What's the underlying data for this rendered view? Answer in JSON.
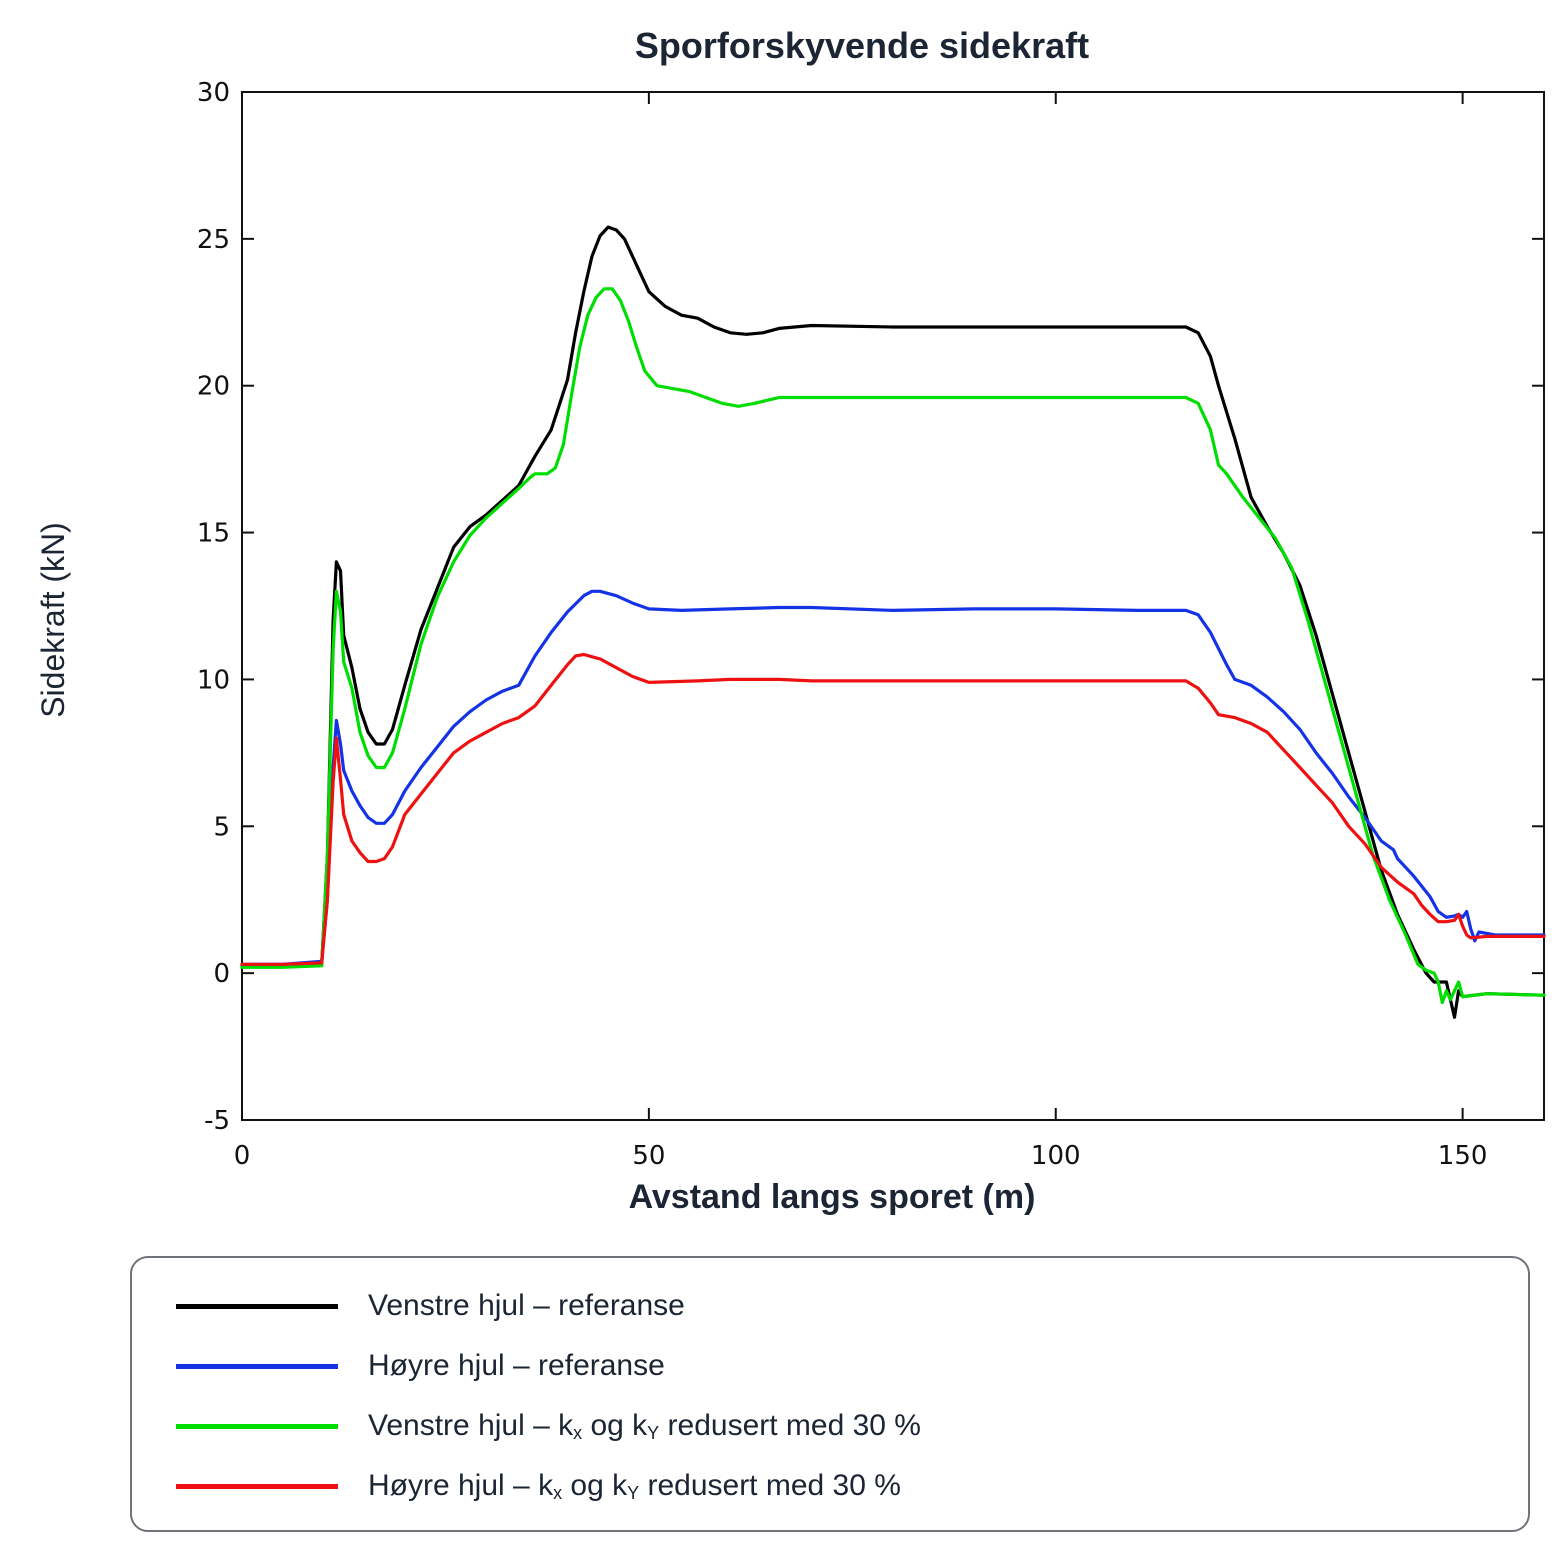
{
  "chart_data": {
    "type": "line",
    "title": "Sporforskyvende sidekraft",
    "xlabel": "Avstand langs sporet (m)",
    "ylabel": "Sidekraft (kN)",
    "xlim": [
      0,
      160
    ],
    "ylim": [
      -5,
      30
    ],
    "xticks": [
      0,
      50,
      100,
      150
    ],
    "yticks": [
      -5,
      0,
      5,
      10,
      15,
      20,
      25,
      30
    ],
    "grid": false,
    "legend_position": "bottom",
    "series": [
      {
        "name": "Venstre hjul – referanse",
        "color": "#000000",
        "points": [
          [
            0,
            0.25
          ],
          [
            5,
            0.25
          ],
          [
            9.8,
            0.3
          ],
          [
            10.5,
            4
          ],
          [
            11.2,
            12
          ],
          [
            11.6,
            14
          ],
          [
            12.1,
            13.7
          ],
          [
            12.5,
            11.5
          ],
          [
            13.5,
            10.4
          ],
          [
            14.5,
            9
          ],
          [
            15.5,
            8.2
          ],
          [
            16.5,
            7.8
          ],
          [
            17.5,
            7.8
          ],
          [
            18.5,
            8.3
          ],
          [
            20,
            9.8
          ],
          [
            22,
            11.7
          ],
          [
            24,
            13.1
          ],
          [
            26,
            14.5
          ],
          [
            28,
            15.2
          ],
          [
            30,
            15.6
          ],
          [
            32,
            16.1
          ],
          [
            34,
            16.6
          ],
          [
            36,
            17.6
          ],
          [
            38,
            18.5
          ],
          [
            40,
            20.2
          ],
          [
            41,
            21.8
          ],
          [
            42,
            23.2
          ],
          [
            43,
            24.4
          ],
          [
            44,
            25.1
          ],
          [
            45,
            25.4
          ],
          [
            46,
            25.3
          ],
          [
            47,
            25
          ],
          [
            48,
            24.4
          ],
          [
            49,
            23.8
          ],
          [
            50,
            23.2
          ],
          [
            52,
            22.7
          ],
          [
            54,
            22.4
          ],
          [
            56,
            22.3
          ],
          [
            58,
            22
          ],
          [
            60,
            21.8
          ],
          [
            62,
            21.75
          ],
          [
            64,
            21.8
          ],
          [
            66,
            21.95
          ],
          [
            70,
            22.05
          ],
          [
            80,
            22
          ],
          [
            90,
            22
          ],
          [
            100,
            22
          ],
          [
            110,
            22
          ],
          [
            116,
            22
          ],
          [
            117.5,
            21.8
          ],
          [
            119,
            21
          ],
          [
            120,
            20
          ],
          [
            122,
            18.2
          ],
          [
            124,
            16.2
          ],
          [
            126,
            15.2
          ],
          [
            128,
            14.3
          ],
          [
            130,
            13.2
          ],
          [
            132,
            11.5
          ],
          [
            134,
            9.5
          ],
          [
            136,
            7.5
          ],
          [
            138,
            5.5
          ],
          [
            140,
            3.5
          ],
          [
            142,
            2
          ],
          [
            144,
            0.8
          ],
          [
            145.5,
            0
          ],
          [
            146.5,
            -0.3
          ],
          [
            148,
            -0.3
          ],
          [
            148.5,
            -0.9
          ],
          [
            149,
            -1.5
          ],
          [
            149.5,
            -0.6
          ],
          [
            150,
            -0.8
          ],
          [
            153,
            -0.7
          ],
          [
            160,
            -0.75
          ]
        ]
      },
      {
        "name": "Høyre hjul – referanse",
        "color": "#1433e6",
        "points": [
          [
            0,
            0.3
          ],
          [
            5,
            0.3
          ],
          [
            9.8,
            0.4
          ],
          [
            10.5,
            2.5
          ],
          [
            11.2,
            7
          ],
          [
            11.6,
            8.6
          ],
          [
            12.1,
            7.8
          ],
          [
            12.5,
            6.9
          ],
          [
            13.5,
            6.2
          ],
          [
            14.5,
            5.7
          ],
          [
            15.5,
            5.3
          ],
          [
            16.5,
            5.1
          ],
          [
            17.5,
            5.1
          ],
          [
            18.5,
            5.4
          ],
          [
            20,
            6.2
          ],
          [
            22,
            7
          ],
          [
            24,
            7.7
          ],
          [
            26,
            8.4
          ],
          [
            28,
            8.9
          ],
          [
            30,
            9.3
          ],
          [
            32,
            9.6
          ],
          [
            34,
            9.8
          ],
          [
            36,
            10.8
          ],
          [
            38,
            11.6
          ],
          [
            40,
            12.3
          ],
          [
            42,
            12.85
          ],
          [
            43,
            13
          ],
          [
            44,
            13
          ],
          [
            46,
            12.85
          ],
          [
            48,
            12.6
          ],
          [
            50,
            12.4
          ],
          [
            54,
            12.35
          ],
          [
            60,
            12.4
          ],
          [
            66,
            12.45
          ],
          [
            70,
            12.45
          ],
          [
            80,
            12.35
          ],
          [
            90,
            12.4
          ],
          [
            100,
            12.4
          ],
          [
            110,
            12.35
          ],
          [
            116,
            12.35
          ],
          [
            117.5,
            12.2
          ],
          [
            119,
            11.6
          ],
          [
            121,
            10.5
          ],
          [
            122,
            10
          ],
          [
            124,
            9.8
          ],
          [
            126,
            9.4
          ],
          [
            128,
            8.9
          ],
          [
            130,
            8.3
          ],
          [
            132,
            7.5
          ],
          [
            134,
            6.8
          ],
          [
            136,
            6
          ],
          [
            138,
            5.3
          ],
          [
            140,
            4.5
          ],
          [
            141.5,
            4.2
          ],
          [
            142,
            3.9
          ],
          [
            144,
            3.3
          ],
          [
            146,
            2.6
          ],
          [
            147,
            2.1
          ],
          [
            148,
            1.9
          ],
          [
            149,
            1.95
          ],
          [
            149.5,
            2
          ],
          [
            150,
            1.9
          ],
          [
            150.5,
            2.1
          ],
          [
            151,
            1.5
          ],
          [
            151.5,
            1.1
          ],
          [
            152,
            1.4
          ],
          [
            154,
            1.3
          ],
          [
            160,
            1.3
          ]
        ]
      },
      {
        "name": "Venstre hjul – kₓ og kᵧ redusert med 30 %",
        "color": "#00dd00",
        "points": [
          [
            0,
            0.2
          ],
          [
            5,
            0.2
          ],
          [
            9.8,
            0.25
          ],
          [
            10.5,
            4
          ],
          [
            11.2,
            11
          ],
          [
            11.6,
            13
          ],
          [
            12.1,
            12.3
          ],
          [
            12.5,
            10.6
          ],
          [
            13.5,
            9.7
          ],
          [
            14.5,
            8.2
          ],
          [
            15.5,
            7.4
          ],
          [
            16.5,
            7
          ],
          [
            17.5,
            7
          ],
          [
            18.5,
            7.5
          ],
          [
            20,
            9
          ],
          [
            22,
            11.2
          ],
          [
            24,
            12.8
          ],
          [
            26,
            14
          ],
          [
            28,
            14.9
          ],
          [
            30,
            15.5
          ],
          [
            32,
            16
          ],
          [
            34,
            16.5
          ],
          [
            35.5,
            16.9
          ],
          [
            36,
            17
          ],
          [
            37.5,
            17
          ],
          [
            38.5,
            17.2
          ],
          [
            39.5,
            18
          ],
          [
            40.5,
            19.7
          ],
          [
            41.5,
            21.3
          ],
          [
            42.5,
            22.4
          ],
          [
            43.5,
            23
          ],
          [
            44.5,
            23.3
          ],
          [
            45.5,
            23.3
          ],
          [
            46.5,
            22.9
          ],
          [
            47.5,
            22.2
          ],
          [
            48.5,
            21.3
          ],
          [
            49.5,
            20.5
          ],
          [
            51,
            20
          ],
          [
            53,
            19.9
          ],
          [
            55,
            19.8
          ],
          [
            57,
            19.6
          ],
          [
            59,
            19.4
          ],
          [
            61,
            19.3
          ],
          [
            63,
            19.4
          ],
          [
            66,
            19.6
          ],
          [
            70,
            19.6
          ],
          [
            80,
            19.6
          ],
          [
            90,
            19.6
          ],
          [
            100,
            19.6
          ],
          [
            110,
            19.6
          ],
          [
            116,
            19.6
          ],
          [
            117.5,
            19.4
          ],
          [
            119,
            18.5
          ],
          [
            120,
            17.3
          ],
          [
            121,
            17
          ],
          [
            123,
            16.2
          ],
          [
            125,
            15.5
          ],
          [
            127,
            14.8
          ],
          [
            129,
            13.8
          ],
          [
            131,
            12
          ],
          [
            133,
            10
          ],
          [
            135,
            8
          ],
          [
            137,
            6
          ],
          [
            139,
            4
          ],
          [
            141,
            2.5
          ],
          [
            143,
            1.3
          ],
          [
            144.5,
            0.3
          ],
          [
            145.5,
            0.1
          ],
          [
            146.5,
            0
          ],
          [
            147,
            -0.3
          ],
          [
            147.5,
            -1
          ],
          [
            148,
            -0.6
          ],
          [
            148.5,
            -0.9
          ],
          [
            149,
            -0.6
          ],
          [
            149.5,
            -0.3
          ],
          [
            150,
            -0.8
          ],
          [
            153,
            -0.7
          ],
          [
            160,
            -0.75
          ]
        ]
      },
      {
        "name": "Høyre hjul – kₓ og kᵧ redusert med 30 %",
        "color": "#ee1111",
        "points": [
          [
            0,
            0.3
          ],
          [
            5,
            0.3
          ],
          [
            9.8,
            0.35
          ],
          [
            10.5,
            2.5
          ],
          [
            11.2,
            6.5
          ],
          [
            11.6,
            8
          ],
          [
            12.1,
            6.6
          ],
          [
            12.5,
            5.4
          ],
          [
            13.5,
            4.5
          ],
          [
            14.5,
            4.1
          ],
          [
            15.5,
            3.8
          ],
          [
            16.5,
            3.8
          ],
          [
            17.5,
            3.9
          ],
          [
            18.5,
            4.3
          ],
          [
            20,
            5.4
          ],
          [
            22,
            6.1
          ],
          [
            24,
            6.8
          ],
          [
            26,
            7.5
          ],
          [
            28,
            7.9
          ],
          [
            30,
            8.2
          ],
          [
            32,
            8.5
          ],
          [
            34,
            8.7
          ],
          [
            36,
            9.1
          ],
          [
            38,
            9.8
          ],
          [
            40,
            10.5
          ],
          [
            41,
            10.8
          ],
          [
            42,
            10.85
          ],
          [
            44,
            10.7
          ],
          [
            46,
            10.4
          ],
          [
            48,
            10.1
          ],
          [
            50,
            9.9
          ],
          [
            56,
            9.95
          ],
          [
            60,
            10
          ],
          [
            66,
            10
          ],
          [
            70,
            9.95
          ],
          [
            80,
            9.95
          ],
          [
            90,
            9.95
          ],
          [
            100,
            9.95
          ],
          [
            110,
            9.95
          ],
          [
            116,
            9.95
          ],
          [
            117.5,
            9.7
          ],
          [
            119,
            9.2
          ],
          [
            120,
            8.8
          ],
          [
            122,
            8.7
          ],
          [
            124,
            8.5
          ],
          [
            126,
            8.2
          ],
          [
            128,
            7.6
          ],
          [
            130,
            7
          ],
          [
            132,
            6.4
          ],
          [
            134,
            5.8
          ],
          [
            136,
            5
          ],
          [
            138,
            4.4
          ],
          [
            140,
            3.6
          ],
          [
            142,
            3.1
          ],
          [
            144,
            2.7
          ],
          [
            145,
            2.3
          ],
          [
            146,
            2
          ],
          [
            147,
            1.75
          ],
          [
            148,
            1.75
          ],
          [
            149,
            1.8
          ],
          [
            149.5,
            2
          ],
          [
            150,
            1.6
          ],
          [
            150.5,
            1.3
          ],
          [
            151,
            1.2
          ],
          [
            153,
            1.25
          ],
          [
            160,
            1.25
          ]
        ]
      }
    ]
  },
  "legend": {
    "items": [
      {
        "main": "Venstre hjul – referanse",
        "k1": "",
        "sub1": "",
        "mid": "",
        "k2": "",
        "sub2": "",
        "tail": ""
      },
      {
        "main": "Høyre hjul – referanse",
        "k1": "",
        "sub1": "",
        "mid": "",
        "k2": "",
        "sub2": "",
        "tail": ""
      },
      {
        "main": "Venstre hjul – ",
        "k1": "k",
        "sub1": "x",
        "mid": " og k",
        "k2": "",
        "sub2": "Y",
        "tail": " redusert med 30 %"
      },
      {
        "main": "Høyre hjul – ",
        "k1": "k",
        "sub1": "x",
        "mid": " og k",
        "k2": "",
        "sub2": "Y",
        "tail": " redusert med 30 %"
      }
    ]
  }
}
